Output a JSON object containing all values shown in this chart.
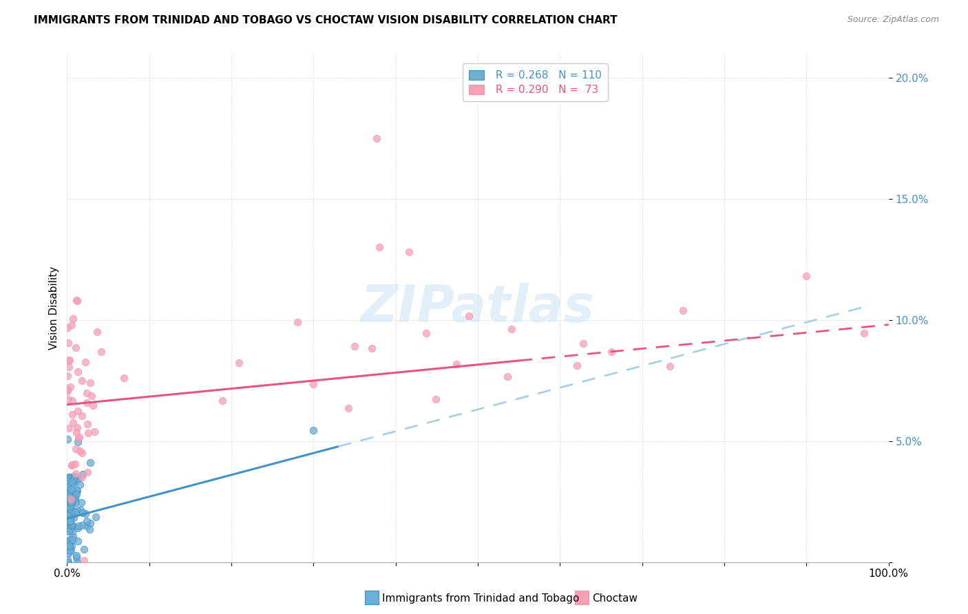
{
  "title": "IMMIGRANTS FROM TRINIDAD AND TOBAGO VS CHOCTAW VISION DISABILITY CORRELATION CHART",
  "source": "Source: ZipAtlas.com",
  "ylabel": "Vision Disability",
  "xlim": [
    0,
    1.0
  ],
  "ylim": [
    0,
    0.21
  ],
  "xticklabels": [
    "0.0%",
    "",
    "",
    "",
    "",
    "",
    "",
    "",
    "",
    "",
    "100.0%"
  ],
  "yticklabels": [
    "",
    "5.0%",
    "10.0%",
    "15.0%",
    "20.0%"
  ],
  "legend_r1": "R = 0.268",
  "legend_n1": "N = 110",
  "legend_r2": "R = 0.290",
  "legend_n2": "N =  73",
  "color_blue": "#6baed6",
  "color_pink": "#fa9fb5",
  "color_line_blue": "#4292c6",
  "color_line_pink": "#e75480",
  "color_line_blue_dash": "#a8cfe8",
  "color_line_pink_dash": "#f5b8cb"
}
